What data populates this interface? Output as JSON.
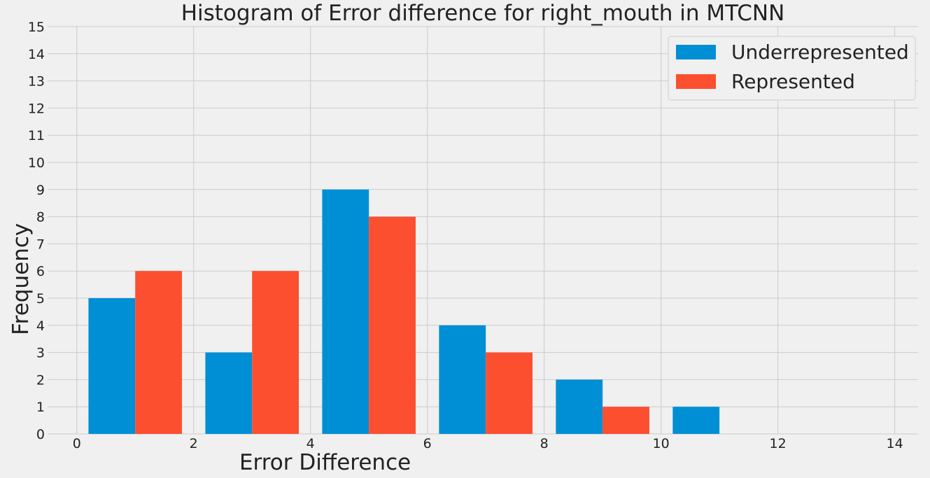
{
  "chart_data": {
    "type": "bar",
    "title": "Histogram of Error difference for right_mouth in MTCNN",
    "xlabel": "Error Difference",
    "ylabel": "Frequency",
    "xlim": [
      -0.5,
      14.4
    ],
    "ylim": [
      0,
      15
    ],
    "xticks": [
      0,
      2,
      4,
      6,
      8,
      10,
      12,
      14
    ],
    "yticks": [
      0,
      1,
      2,
      3,
      4,
      5,
      6,
      7,
      8,
      9,
      10,
      11,
      12,
      13,
      14,
      15
    ],
    "bin_edges": [
      0.2,
      2.2,
      4.2,
      6.2,
      8.2,
      10.2
    ],
    "bin_width": 2,
    "bar_fill_fraction": 0.8,
    "series": [
      {
        "name": "Underrepresented",
        "color": "#008fd5",
        "values": [
          5,
          3,
          9,
          4,
          2,
          1
        ]
      },
      {
        "name": "Represented",
        "color": "#fc4f30",
        "values": [
          6,
          6,
          8,
          3,
          1,
          0
        ]
      }
    ],
    "grid": true,
    "legend_position": "top-right"
  }
}
